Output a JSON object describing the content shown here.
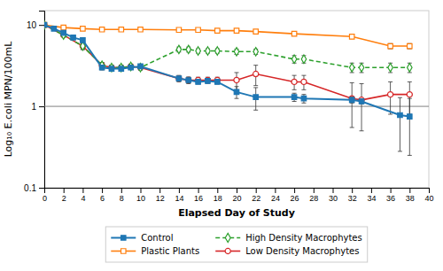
{
  "chart_data": {
    "type": "line",
    "xlabel": "Elapsed Day of Study",
    "ylabel": "Log₁₀ E.coli MPN/100mL",
    "log": "y",
    "grid": false,
    "legend": "bottom",
    "xlim": [
      0,
      40
    ],
    "ylim": [
      0.1,
      15
    ],
    "xticks": [
      0,
      2,
      4,
      6,
      8,
      10,
      12,
      14,
      16,
      18,
      20,
      22,
      24,
      26,
      28,
      30,
      32,
      34,
      36,
      38,
      40
    ],
    "yticks": [
      0.1,
      1,
      10
    ],
    "hline": 1.0,
    "series": [
      {
        "name": "Control",
        "marker": "square",
        "line_style": "solid",
        "x": [
          0,
          1,
          2,
          3,
          4,
          6,
          7,
          8,
          9,
          10,
          14,
          15,
          16,
          17,
          18,
          20,
          22,
          26,
          27,
          32,
          33,
          37,
          38
        ],
        "values": [
          10,
          9.0,
          8.0,
          7.0,
          6.5,
          3.0,
          2.9,
          2.9,
          3.0,
          3.1,
          2.2,
          2.1,
          2.0,
          2.05,
          2.0,
          1.5,
          1.3,
          1.3,
          1.25,
          1.2,
          1.15,
          0.78,
          0.75
        ],
        "errors": [
          0.05,
          0.15,
          0.2,
          0.2,
          0.2,
          0.2,
          0.15,
          0.15,
          0.15,
          0.15,
          0.15,
          0.15,
          0.12,
          0.12,
          0.12,
          0.25,
          0.4,
          0.15,
          0.15,
          0.1,
          0.08,
          0.5,
          0.5
        ]
      },
      {
        "name": "Plastic Plants",
        "marker": "square-open",
        "line_style": "solid",
        "x": [
          0,
          2,
          4,
          6,
          8,
          10,
          14,
          16,
          18,
          20,
          22,
          26,
          32,
          36,
          38
        ],
        "values": [
          10,
          9.3,
          9.0,
          8.8,
          8.8,
          8.8,
          8.7,
          8.7,
          8.5,
          8.5,
          8.3,
          7.8,
          7.2,
          5.5,
          5.5
        ],
        "errors": [
          0.05,
          0.2,
          0.2,
          0.15,
          0.15,
          0.15,
          0.25,
          0.25,
          0.3,
          0.3,
          0.3,
          0.4,
          0.4,
          0.4,
          0.4
        ]
      },
      {
        "name": "High Density Macrophytes",
        "marker": "diamond-open",
        "line_style": "dashed",
        "x": [
          0,
          2,
          4,
          6,
          7,
          8,
          9,
          10,
          14,
          15,
          16,
          17,
          18,
          20,
          22,
          26,
          27,
          32,
          33,
          36,
          38
        ],
        "values": [
          10,
          7.5,
          5.5,
          3.2,
          3.0,
          3.0,
          3.1,
          3.0,
          5.0,
          5.0,
          4.8,
          4.8,
          4.8,
          4.7,
          4.7,
          3.8,
          3.8,
          3.0,
          3.0,
          3.0,
          3.0
        ],
        "errors": [
          0.05,
          0.3,
          0.5,
          0.25,
          0.2,
          0.2,
          0.2,
          0.2,
          0.35,
          0.35,
          0.3,
          0.3,
          0.3,
          0.35,
          0.35,
          0.4,
          0.4,
          0.4,
          0.4,
          0.4,
          0.4
        ]
      },
      {
        "name": "Low Density Macrophytes",
        "marker": "circle-open",
        "line_style": "solid",
        "x": [
          0,
          2,
          4,
          6,
          7,
          8,
          9,
          10,
          14,
          15,
          16,
          17,
          18,
          20,
          22,
          26,
          27,
          32,
          33,
          36,
          38
        ],
        "values": [
          10,
          7.5,
          5.5,
          3.2,
          3.0,
          3.0,
          3.1,
          3.0,
          2.2,
          2.1,
          2.1,
          2.1,
          2.1,
          2.1,
          2.5,
          2.0,
          2.0,
          1.25,
          1.2,
          1.4,
          1.4
        ],
        "errors": [
          0.05,
          0.3,
          0.5,
          0.25,
          0.2,
          0.2,
          0.2,
          0.2,
          0.2,
          0.2,
          0.18,
          0.18,
          0.18,
          0.5,
          0.7,
          0.4,
          0.4,
          0.7,
          0.7,
          0.6,
          0.6
        ]
      }
    ]
  }
}
